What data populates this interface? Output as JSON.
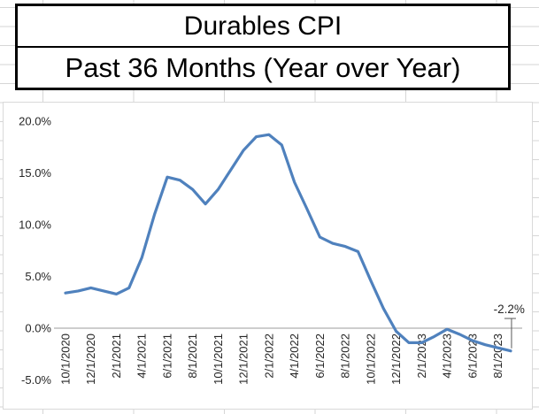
{
  "title_box": {
    "line1": "Durables CPI",
    "line2": "Past 36 Months (Year over Year)"
  },
  "chart_data": {
    "type": "line",
    "title": "Durables CPI",
    "subtitle": "Past 36 Months (Year over Year)",
    "x": [
      "10/1/2020",
      "11/1/2020",
      "12/1/2020",
      "1/1/2021",
      "2/1/2021",
      "3/1/2021",
      "4/1/2021",
      "5/1/2021",
      "6/1/2021",
      "7/1/2021",
      "8/1/2021",
      "9/1/2021",
      "10/1/2021",
      "11/1/2021",
      "12/1/2021",
      "1/1/2022",
      "2/1/2022",
      "3/1/2022",
      "4/1/2022",
      "5/1/2022",
      "6/1/2022",
      "7/1/2022",
      "8/1/2022",
      "9/1/2022",
      "10/1/2022",
      "11/1/2022",
      "12/1/2022",
      "1/1/2023",
      "2/1/2023",
      "3/1/2023",
      "4/1/2023",
      "5/1/2023",
      "6/1/2023",
      "7/1/2023",
      "8/1/2023",
      "9/1/2023"
    ],
    "values": [
      3.4,
      3.6,
      3.9,
      3.6,
      3.3,
      3.9,
      6.8,
      11.0,
      14.6,
      14.3,
      13.4,
      12.0,
      13.4,
      15.3,
      17.2,
      18.5,
      18.7,
      17.7,
      14.1,
      11.5,
      8.8,
      8.2,
      7.9,
      7.4,
      4.6,
      1.9,
      -0.3,
      -1.4,
      -1.4,
      -0.8,
      -0.1,
      -0.6,
      -1.2,
      -1.6,
      -1.9,
      -2.2
    ],
    "x_tick_labels": [
      "10/1/2020",
      "12/1/2020",
      "2/1/2021",
      "4/1/2021",
      "6/1/2021",
      "8/1/2021",
      "10/1/2021",
      "12/1/2021",
      "2/1/2022",
      "4/1/2022",
      "6/1/2022",
      "8/1/2022",
      "10/1/2022",
      "12/1/2022",
      "2/1/2023",
      "4/1/2023",
      "6/1/2023",
      "8/1/2023"
    ],
    "x_tick_every": 2,
    "y_tick_labels": [
      "20.0%",
      "15.0%",
      "10.0%",
      "5.0%",
      "0.0%",
      "-5.0%"
    ],
    "y_tick_values": [
      20,
      15,
      10,
      5,
      0,
      -5
    ],
    "ylim": [
      -5,
      21.8
    ],
    "grid": false,
    "legend": "none",
    "line_color": "#4F81BD",
    "axis_color": "#9b9b9b",
    "label_color": "#262626",
    "last_point_label": "-2.2%"
  }
}
